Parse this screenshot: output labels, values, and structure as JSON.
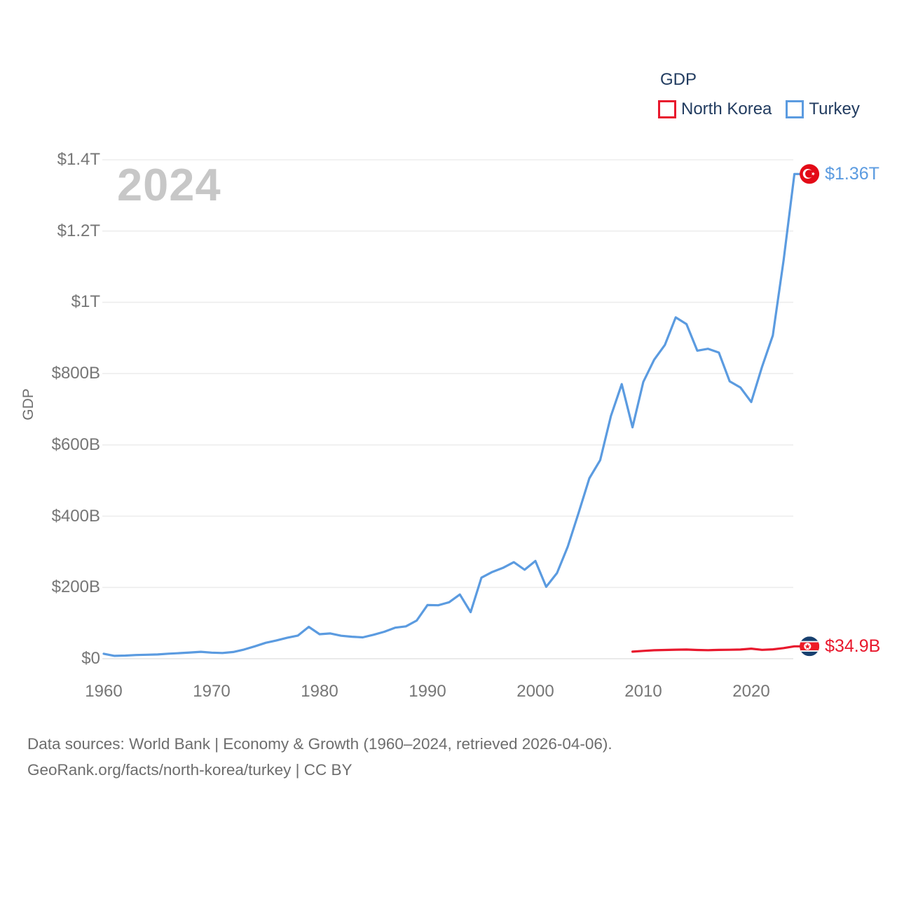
{
  "legend": {
    "title": "GDP",
    "items": [
      {
        "label": "North Korea",
        "color": "#e8182d"
      },
      {
        "label": "Turkey",
        "color": "#5b9be0"
      }
    ]
  },
  "watermark": "2024",
  "footer": {
    "line1": "Data sources: World Bank | Economy & Growth (1960–2024, retrieved 2026-04-06).",
    "line2": "GeoRank.org/facts/north-korea/turkey | CC BY"
  },
  "chart_data": {
    "type": "line",
    "title": "GDP",
    "ylabel": "GDP",
    "xlabel": "",
    "units": "current US$, billions",
    "grid": "horizontal",
    "legend_position": "top-right",
    "x_range": [
      1960,
      2024
    ],
    "ylim_billions": [
      0,
      1400
    ],
    "x_ticks": [
      1960,
      1970,
      1980,
      1990,
      2000,
      2010,
      2020
    ],
    "y_ticks": [
      {
        "label": "$0",
        "value": 0
      },
      {
        "label": "$200B",
        "value": 200
      },
      {
        "label": "$400B",
        "value": 400
      },
      {
        "label": "$600B",
        "value": 600
      },
      {
        "label": "$800B",
        "value": 800
      },
      {
        "label": "$1T",
        "value": 1000
      },
      {
        "label": "$1.2T",
        "value": 1200
      },
      {
        "label": "$1.4T",
        "value": 1400
      }
    ],
    "series": [
      {
        "name": "North Korea",
        "color": "#e8182d",
        "end_label": "$34.9B",
        "flag": "north-korea",
        "points": [
          [
            2009,
            19.8
          ],
          [
            2010,
            22.0
          ],
          [
            2011,
            23.8
          ],
          [
            2012,
            24.6
          ],
          [
            2013,
            25.4
          ],
          [
            2014,
            25.8
          ],
          [
            2015,
            24.5
          ],
          [
            2016,
            24.0
          ],
          [
            2017,
            24.8
          ],
          [
            2018,
            25.2
          ],
          [
            2019,
            25.8
          ],
          [
            2020,
            28.4
          ],
          [
            2021,
            24.9
          ],
          [
            2022,
            26.4
          ],
          [
            2023,
            29.8
          ],
          [
            2024,
            34.9
          ]
        ]
      },
      {
        "name": "Turkey",
        "color": "#5b9be0",
        "end_label": "$1.36T",
        "flag": "turkey",
        "points": [
          [
            1960,
            14.0
          ],
          [
            1961,
            8.0
          ],
          [
            1962,
            8.9
          ],
          [
            1963,
            10.4
          ],
          [
            1964,
            11.2
          ],
          [
            1965,
            11.9
          ],
          [
            1966,
            14.1
          ],
          [
            1967,
            15.7
          ],
          [
            1968,
            17.5
          ],
          [
            1969,
            19.5
          ],
          [
            1970,
            17.1
          ],
          [
            1971,
            16.2
          ],
          [
            1972,
            18.9
          ],
          [
            1973,
            25.7
          ],
          [
            1974,
            34.8
          ],
          [
            1975,
            44.6
          ],
          [
            1976,
            51.3
          ],
          [
            1977,
            58.7
          ],
          [
            1978,
            65.1
          ],
          [
            1979,
            89.4
          ],
          [
            1980,
            68.8
          ],
          [
            1981,
            71.0
          ],
          [
            1982,
            64.5
          ],
          [
            1983,
            61.7
          ],
          [
            1984,
            60.0
          ],
          [
            1985,
            67.2
          ],
          [
            1986,
            75.7
          ],
          [
            1987,
            87.2
          ],
          [
            1988,
            90.8
          ],
          [
            1989,
            107.1
          ],
          [
            1990,
            150.7
          ],
          [
            1991,
            150.0
          ],
          [
            1992,
            158.5
          ],
          [
            1993,
            180.4
          ],
          [
            1994,
            130.7
          ],
          [
            1995,
            227.5
          ],
          [
            1996,
            243.4
          ],
          [
            1997,
            255.1
          ],
          [
            1998,
            270.9
          ],
          [
            1999,
            249.8
          ],
          [
            2000,
            274.3
          ],
          [
            2001,
            201.8
          ],
          [
            2002,
            240.2
          ],
          [
            2003,
            314.6
          ],
          [
            2004,
            408.9
          ],
          [
            2005,
            506.3
          ],
          [
            2006,
            557.1
          ],
          [
            2007,
            681.3
          ],
          [
            2008,
            770.4
          ],
          [
            2009,
            649.3
          ],
          [
            2010,
            776.9
          ],
          [
            2011,
            838.8
          ],
          [
            2012,
            880.6
          ],
          [
            2013,
            957.8
          ],
          [
            2014,
            938.9
          ],
          [
            2015,
            864.3
          ],
          [
            2016,
            869.7
          ],
          [
            2017,
            859.0
          ],
          [
            2018,
            778.5
          ],
          [
            2019,
            761.0
          ],
          [
            2020,
            720.3
          ],
          [
            2021,
            819.0
          ],
          [
            2022,
            907.1
          ],
          [
            2023,
            1118.3
          ],
          [
            2024,
            1360.0
          ]
        ]
      }
    ]
  }
}
